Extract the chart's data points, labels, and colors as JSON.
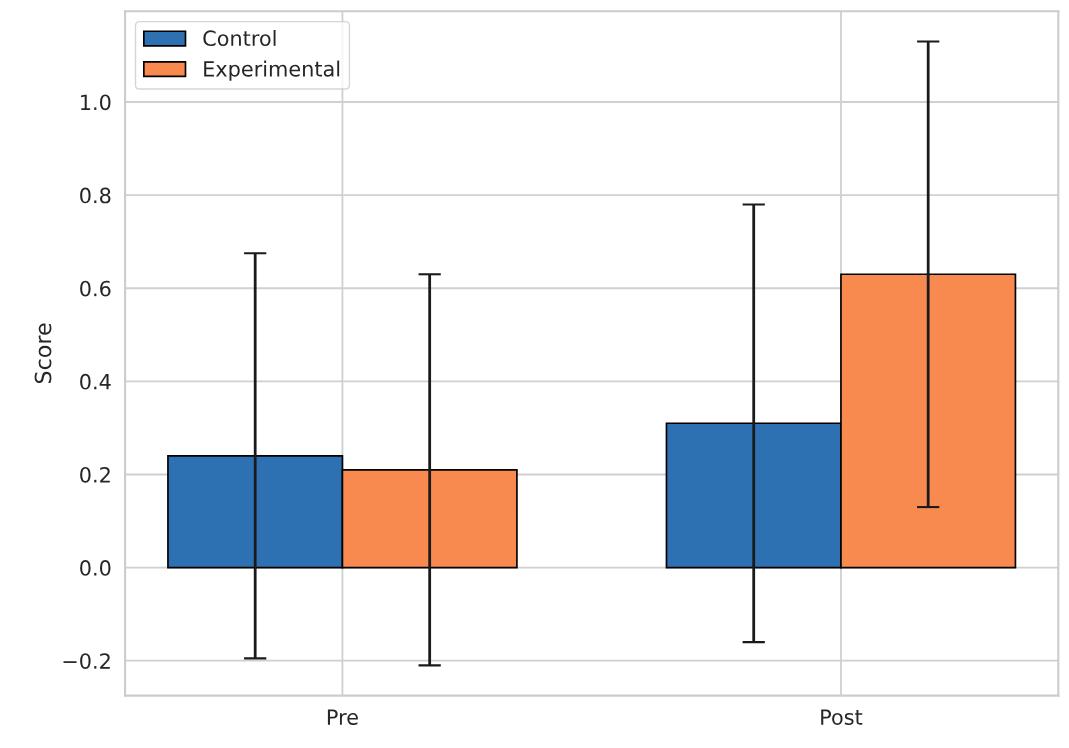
{
  "chart_data": {
    "type": "bar",
    "ylabel": "Score",
    "categories": [
      "Pre",
      "Post"
    ],
    "series": [
      {
        "name": "Control",
        "color": "#2e71b3",
        "values": [
          0.24,
          0.31
        ],
        "errors": [
          0.435,
          0.47
        ]
      },
      {
        "name": "Experimental",
        "color": "#f8894f",
        "values": [
          0.21,
          0.63
        ],
        "errors": [
          0.42,
          0.5
        ]
      }
    ],
    "ylim": [
      -0.275,
      1.195
    ],
    "yticks": [
      {
        "value": -0.2,
        "label": "−0.2"
      },
      {
        "value": 0.0,
        "label": "0.0"
      },
      {
        "value": 0.2,
        "label": "0.2"
      },
      {
        "value": 0.4,
        "label": "0.4"
      },
      {
        "value": 0.6,
        "label": "0.6"
      },
      {
        "value": 0.8,
        "label": "0.8"
      },
      {
        "value": 1.0,
        "label": "1.0"
      }
    ],
    "grid": true,
    "legend": "top left"
  }
}
